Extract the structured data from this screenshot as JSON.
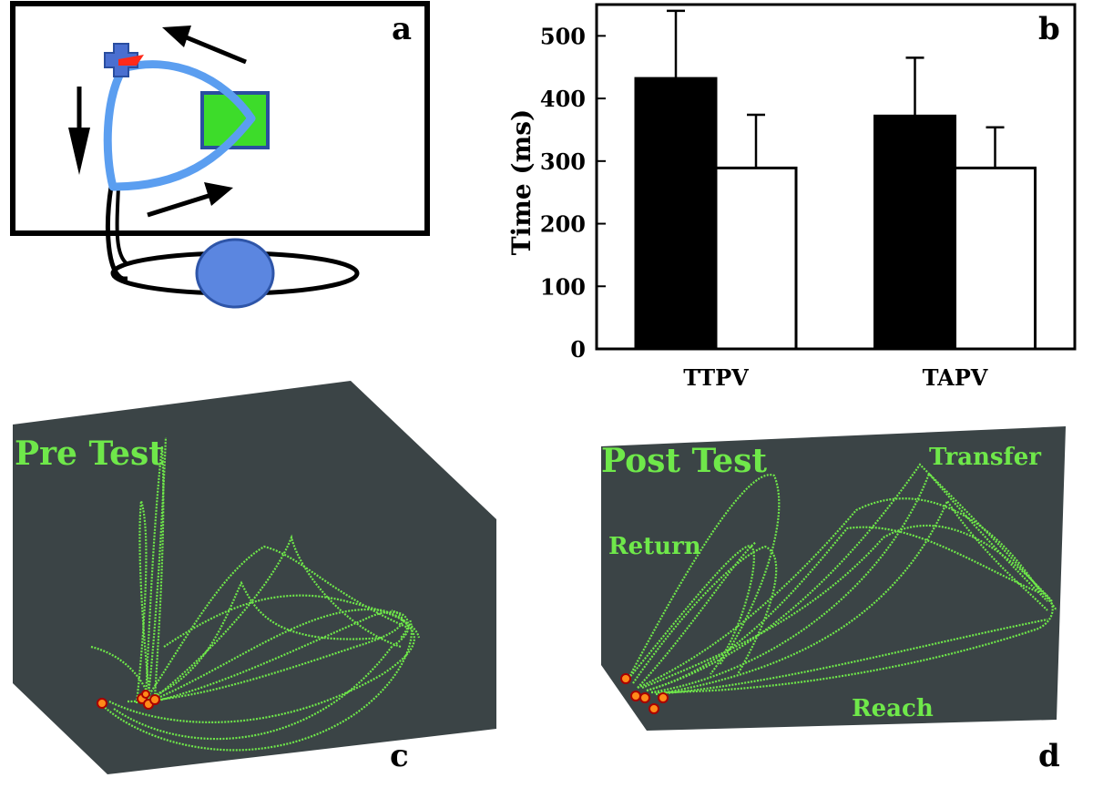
{
  "panels": {
    "a": {
      "label": "a"
    },
    "b": {
      "label": "b"
    },
    "c": {
      "label": "c",
      "title": "Pre Test"
    },
    "d": {
      "label": "d",
      "title": "Post Test",
      "annotations": [
        "Transfer",
        "Return",
        "Reach"
      ]
    }
  },
  "chart_data": {
    "type": "bar",
    "categories": [
      "TTPV",
      "TAPV"
    ],
    "series": [
      {
        "values": [
          432,
          372
        ],
        "errors": [
          108,
          93
        ],
        "color": "#000000"
      },
      {
        "values": [
          289,
          289
        ],
        "errors": [
          85,
          65
        ],
        "color": "#ffffff"
      }
    ],
    "ylabel": "Time (ms)",
    "yticks": [
      0,
      100,
      200,
      300,
      400,
      500
    ],
    "ylim": [
      0,
      550
    ],
    "grid": false
  },
  "colors": {
    "trajectory_green": "#6fe84a",
    "plot_background": "#3b4446",
    "path_blue": "#5b9ef0",
    "target_green": "#3ddc2a",
    "marker_red": "#ff2a1a"
  }
}
